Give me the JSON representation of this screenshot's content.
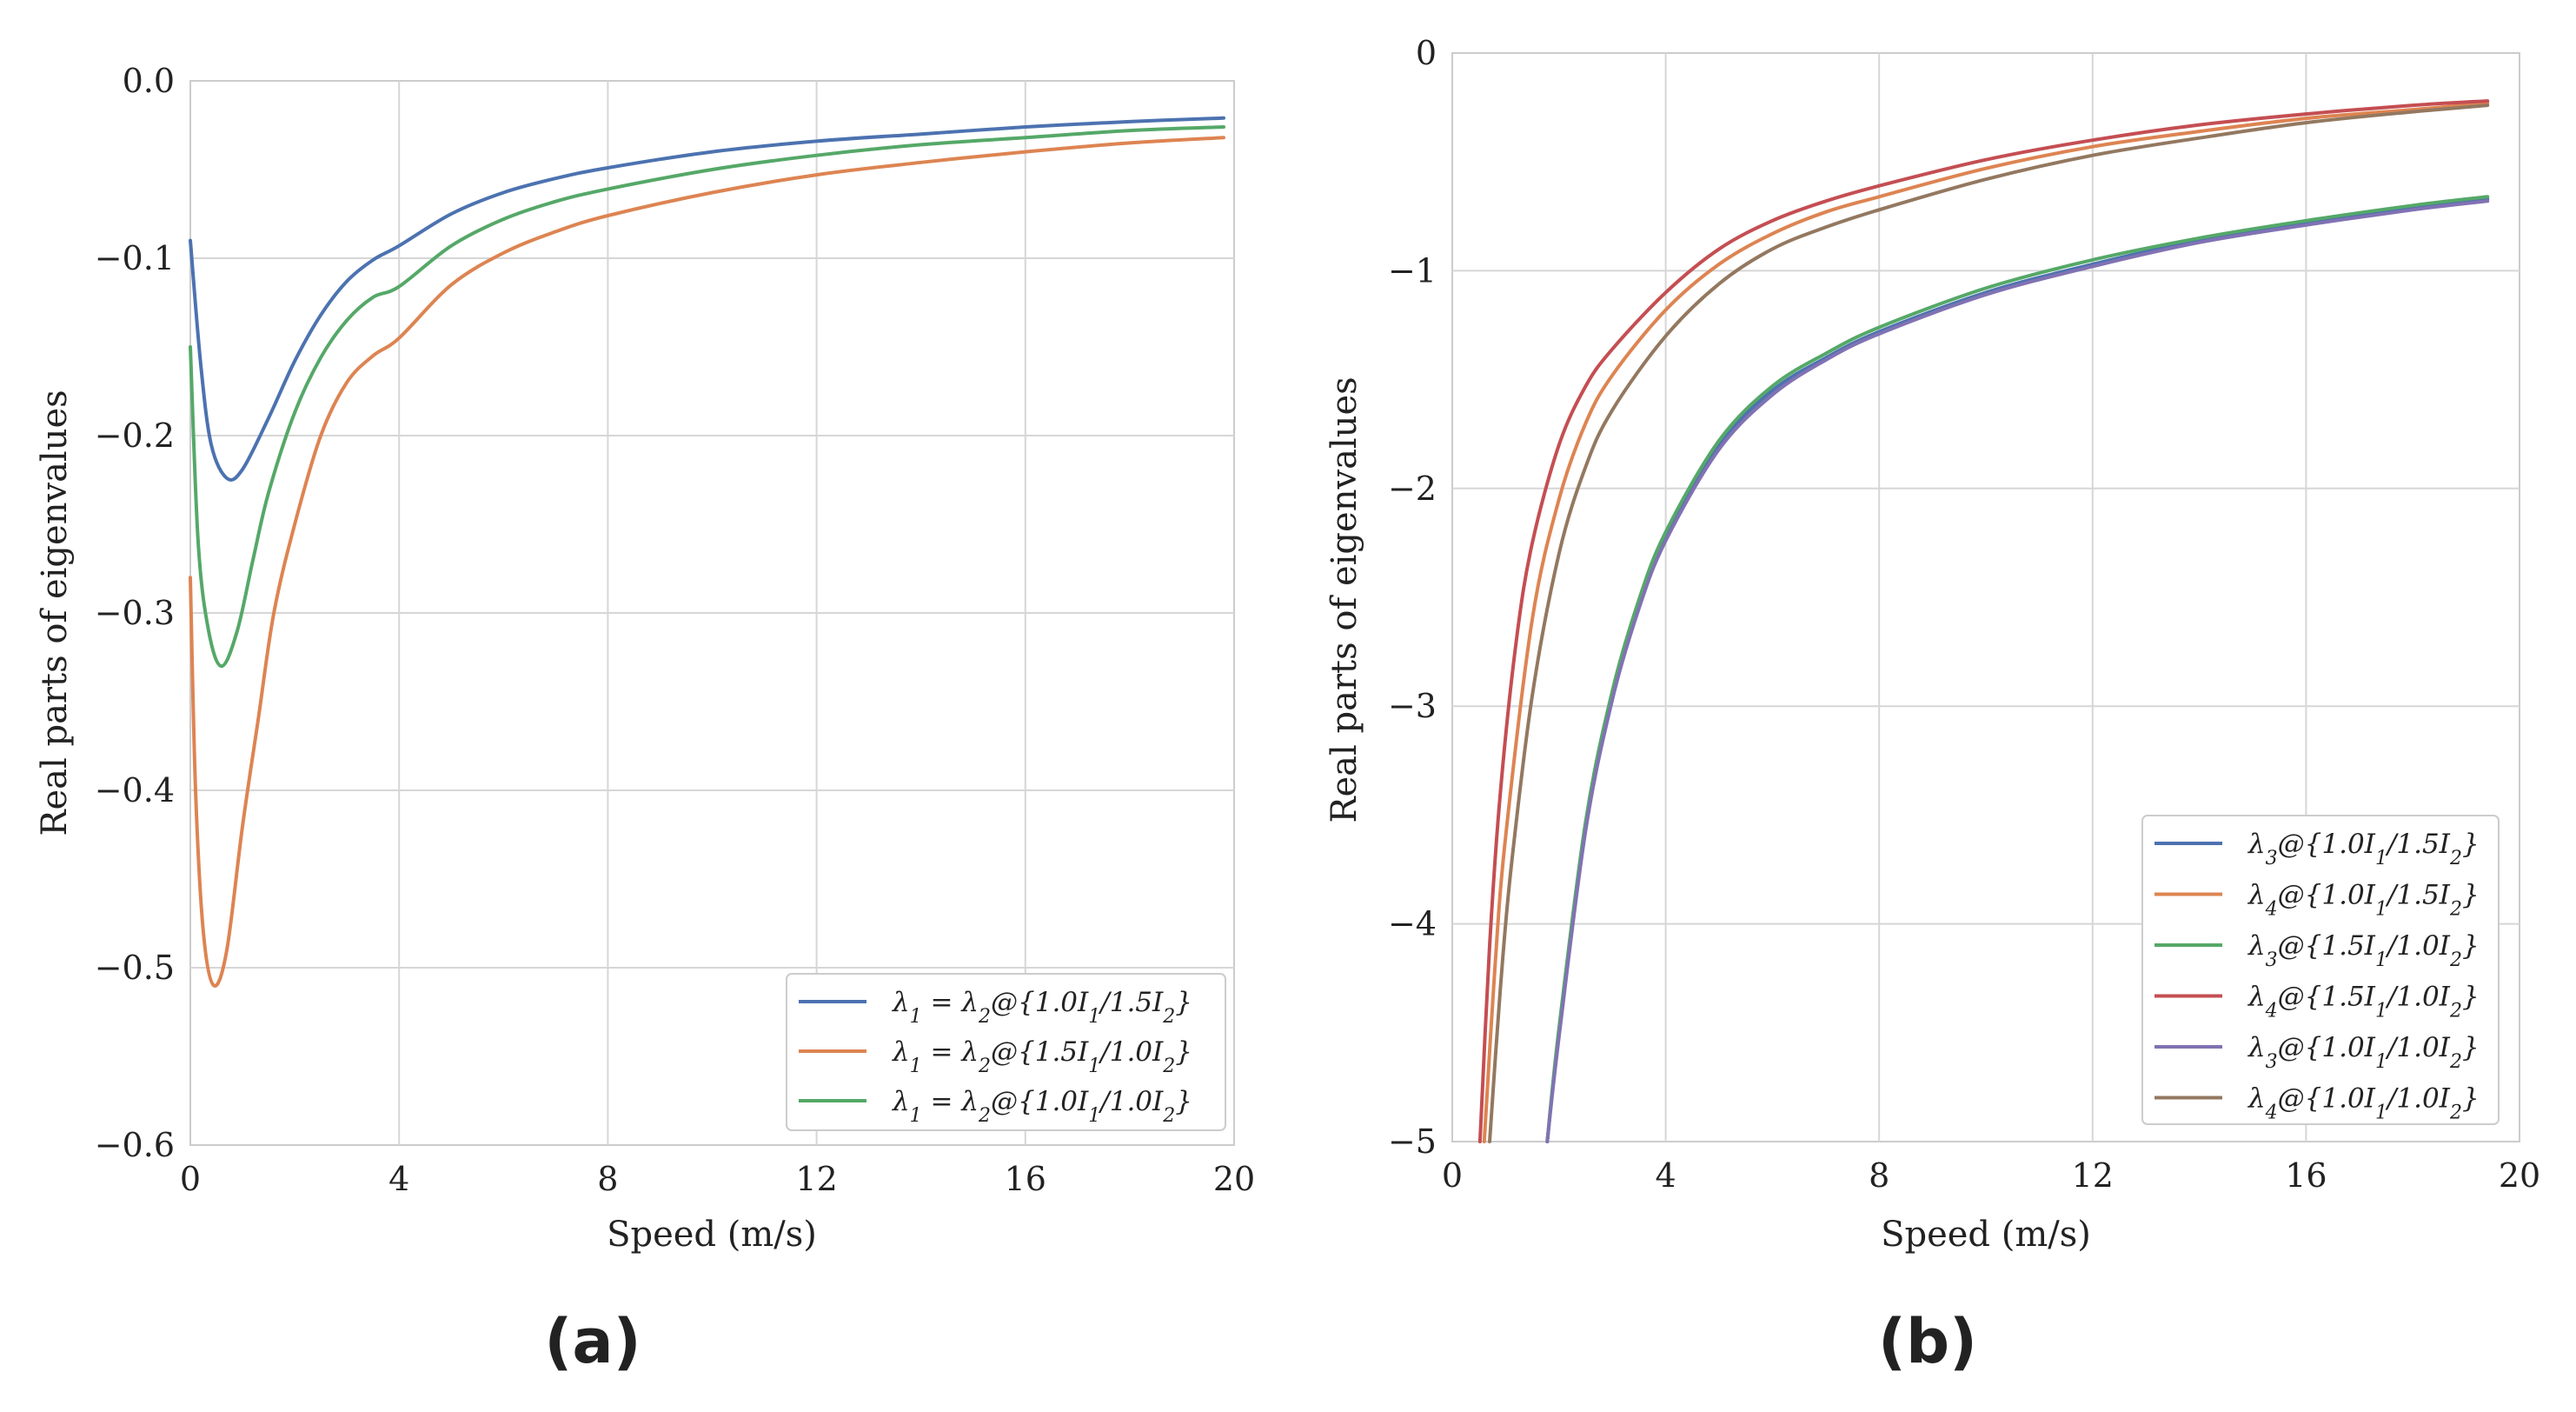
{
  "panel_labels": {
    "a": "(a)",
    "b": "(b)"
  },
  "chart_data": [
    {
      "id": "a",
      "type": "line",
      "xlabel": "Speed (m/s)",
      "ylabel": "Real parts of eigenvalues",
      "xlim": [
        0,
        20
      ],
      "ylim": [
        -0.6,
        0.0
      ],
      "xticks": [
        0,
        4,
        8,
        12,
        16,
        20
      ],
      "xtick_labels": [
        "0",
        "4",
        "8",
        "12",
        "16",
        "20"
      ],
      "yticks": [
        0.0,
        -0.1,
        -0.2,
        -0.3,
        -0.4,
        -0.5,
        -0.6
      ],
      "ytick_labels": [
        "0.0",
        "−0.1",
        "−0.2",
        "−0.3",
        "−0.4",
        "−0.5",
        "−0.6"
      ],
      "grid": true,
      "legend_position": "bottom-right",
      "series": [
        {
          "name": "λ1 = λ2@{1.0I1/1.5I2}",
          "color": "#4c72b0",
          "x": [
            0.0,
            0.2,
            0.4,
            0.7,
            1.0,
            1.5,
            2.0,
            2.5,
            3.0,
            3.5,
            4.0,
            5.0,
            6.0,
            7.0,
            8.0,
            10.0,
            12.0,
            14.0,
            16.0,
            18.0,
            19.8
          ],
          "y": [
            -0.09,
            -0.16,
            -0.205,
            -0.224,
            -0.219,
            -0.19,
            -0.158,
            -0.132,
            -0.113,
            -0.101,
            -0.093,
            -0.075,
            -0.063,
            -0.055,
            -0.049,
            -0.04,
            -0.034,
            -0.03,
            -0.026,
            -0.023,
            -0.021
          ]
        },
        {
          "name": "λ1 = λ2@{1.5I1/1.0I2}",
          "color": "#dd8452",
          "x": [
            0.0,
            0.1,
            0.25,
            0.45,
            0.7,
            1.0,
            1.3,
            1.6,
            2.0,
            2.5,
            3.0,
            3.5,
            4.0,
            5.0,
            6.0,
            7.0,
            8.0,
            10.0,
            12.0,
            14.0,
            16.0,
            18.0,
            19.8
          ],
          "y": [
            -0.28,
            -0.4,
            -0.48,
            -0.51,
            -0.49,
            -0.42,
            -0.36,
            -0.3,
            -0.25,
            -0.2,
            -0.17,
            -0.155,
            -0.145,
            -0.115,
            -0.097,
            -0.085,
            -0.076,
            -0.063,
            -0.053,
            -0.046,
            -0.04,
            -0.035,
            -0.032
          ]
        },
        {
          "name": "λ1 = λ2@{1.0I1/1.0I2}",
          "color": "#55a868",
          "x": [
            0.0,
            0.15,
            0.35,
            0.6,
            0.9,
            1.2,
            1.5,
            2.0,
            2.5,
            3.0,
            3.5,
            4.0,
            5.0,
            6.0,
            7.0,
            8.0,
            10.0,
            12.0,
            14.0,
            16.0,
            18.0,
            19.8
          ],
          "y": [
            -0.15,
            -0.26,
            -0.31,
            -0.33,
            -0.31,
            -0.27,
            -0.232,
            -0.187,
            -0.156,
            -0.135,
            -0.122,
            -0.116,
            -0.093,
            -0.078,
            -0.068,
            -0.061,
            -0.05,
            -0.042,
            -0.036,
            -0.032,
            -0.028,
            -0.026
          ]
        }
      ]
    },
    {
      "id": "b",
      "type": "line",
      "xlabel": "Speed (m/s)",
      "ylabel": "Real parts of eigenvalues",
      "xlim": [
        0,
        20
      ],
      "ylim": [
        -5,
        0
      ],
      "xticks": [
        0,
        4,
        8,
        12,
        16,
        20
      ],
      "xtick_labels": [
        "0",
        "4",
        "8",
        "12",
        "16",
        "20"
      ],
      "yticks": [
        0,
        -1,
        -2,
        -3,
        -4,
        -5
      ],
      "ytick_labels": [
        "0",
        "−1",
        "−2",
        "−3",
        "−4",
        "−5"
      ],
      "grid": true,
      "legend_position": "bottom-right",
      "series": [
        {
          "name": "λ3@{1.0I1/1.5I2}",
          "color": "#4c72b0",
          "x": [
            1.78,
            2.0,
            2.5,
            3.0,
            3.5,
            4.0,
            5.0,
            6.0,
            7.0,
            8.0,
            10.0,
            12.0,
            14.0,
            16.0,
            18.0,
            19.4
          ],
          "y": [
            -5.0,
            -4.5,
            -3.55,
            -2.95,
            -2.53,
            -2.22,
            -1.8,
            -1.55,
            -1.4,
            -1.28,
            -1.1,
            -0.97,
            -0.86,
            -0.78,
            -0.71,
            -0.67
          ]
        },
        {
          "name": "λ4@{1.0I1/1.5I2}",
          "color": "#dd8452",
          "x": [
            0.6,
            0.8,
            1.0,
            1.5,
            2.0,
            2.5,
            3.0,
            4.0,
            5.0,
            6.0,
            7.0,
            8.0,
            10.0,
            12.0,
            14.0,
            16.0,
            18.0,
            19.4
          ],
          "y": [
            -5.0,
            -4.2,
            -3.6,
            -2.6,
            -2.05,
            -1.7,
            -1.48,
            -1.18,
            -0.97,
            -0.83,
            -0.73,
            -0.66,
            -0.53,
            -0.43,
            -0.36,
            -0.3,
            -0.26,
            -0.23
          ]
        },
        {
          "name": "λ3@{1.5I1/1.0I2}",
          "color": "#55a868",
          "x": [
            1.78,
            2.0,
            2.5,
            3.0,
            3.5,
            4.0,
            5.0,
            6.0,
            7.0,
            8.0,
            10.0,
            12.0,
            14.0,
            16.0,
            18.0,
            19.4
          ],
          "y": [
            -5.0,
            -4.48,
            -3.53,
            -2.93,
            -2.51,
            -2.2,
            -1.78,
            -1.53,
            -1.38,
            -1.26,
            -1.08,
            -0.95,
            -0.85,
            -0.77,
            -0.7,
            -0.66
          ]
        },
        {
          "name": "λ4@{1.5I1/1.0I2}",
          "color": "#c44e52",
          "x": [
            0.52,
            0.7,
            0.9,
            1.2,
            1.5,
            2.0,
            2.5,
            3.0,
            4.0,
            5.0,
            6.0,
            7.0,
            8.0,
            10.0,
            12.0,
            14.0,
            16.0,
            18.0,
            19.4
          ],
          "y": [
            -5.0,
            -4.1,
            -3.4,
            -2.7,
            -2.25,
            -1.8,
            -1.53,
            -1.36,
            -1.1,
            -0.9,
            -0.77,
            -0.68,
            -0.61,
            -0.49,
            -0.4,
            -0.33,
            -0.28,
            -0.24,
            -0.22
          ]
        },
        {
          "name": "λ3@{1.0I1/1.0I2}",
          "color": "#8172b3",
          "x": [
            1.78,
            2.0,
            2.5,
            3.0,
            3.5,
            4.0,
            5.0,
            6.0,
            7.0,
            8.0,
            10.0,
            12.0,
            14.0,
            16.0,
            18.0,
            19.4
          ],
          "y": [
            -5.0,
            -4.52,
            -3.57,
            -2.97,
            -2.55,
            -2.24,
            -1.82,
            -1.57,
            -1.41,
            -1.29,
            -1.11,
            -0.98,
            -0.87,
            -0.79,
            -0.72,
            -0.68
          ]
        },
        {
          "name": "λ4@{1.0I1/1.0I2}",
          "color": "#937860",
          "x": [
            0.7,
            0.9,
            1.1,
            1.5,
            2.0,
            2.5,
            3.0,
            4.0,
            5.0,
            6.0,
            7.0,
            8.0,
            10.0,
            12.0,
            14.0,
            16.0,
            18.0,
            19.4
          ],
          "y": [
            -5.0,
            -4.3,
            -3.75,
            -2.95,
            -2.3,
            -1.9,
            -1.64,
            -1.3,
            -1.06,
            -0.9,
            -0.8,
            -0.72,
            -0.58,
            -0.47,
            -0.39,
            -0.32,
            -0.27,
            -0.24
          ]
        }
      ]
    }
  ]
}
